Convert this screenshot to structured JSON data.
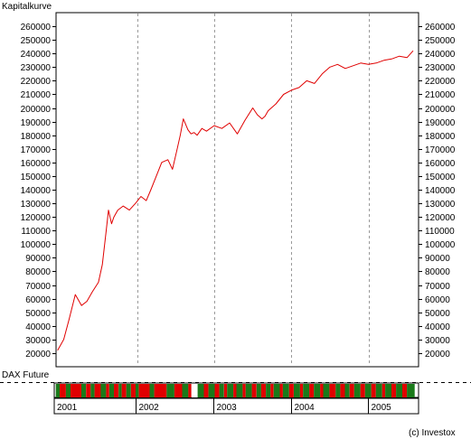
{
  "chart_data": [
    {
      "type": "line",
      "title": "Kapitalkurve",
      "xlabel": "",
      "ylabel": "",
      "x_tick_labels": [
        "2001",
        "2002",
        "2003",
        "2004",
        "2005"
      ],
      "ylim": [
        10000,
        270000
      ],
      "y_ticks": [
        20000,
        30000,
        40000,
        50000,
        60000,
        70000,
        80000,
        90000,
        100000,
        110000,
        120000,
        130000,
        140000,
        150000,
        160000,
        170000,
        180000,
        190000,
        200000,
        210000,
        220000,
        230000,
        240000,
        250000,
        260000
      ],
      "y_axis_both_sides": true,
      "grid": "vertical dashed at year boundaries",
      "series": [
        {
          "color": "#e00000",
          "x": [
            2000.97,
            2001.05,
            2001.12,
            2001.2,
            2001.28,
            2001.35,
            2001.42,
            2001.5,
            2001.55,
            2001.6,
            2001.63,
            2001.67,
            2001.7,
            2001.75,
            2001.82,
            2001.9,
            2001.98,
            2002.05,
            2002.12,
            2002.18,
            2002.25,
            2002.32,
            2002.4,
            2002.46,
            2002.52,
            2002.56,
            2002.6,
            2002.66,
            2002.7,
            2002.74,
            2002.78,
            2002.84,
            2002.9,
            2003.0,
            2003.1,
            2003.2,
            2003.3,
            2003.4,
            2003.5,
            2003.56,
            2003.62,
            2003.66,
            2003.7,
            2003.8,
            2003.9,
            2004.0,
            2004.1,
            2004.2,
            2004.3,
            2004.4,
            2004.5,
            2004.6,
            2004.7,
            2004.8,
            2004.9,
            2005.0,
            2005.1,
            2005.2,
            2005.3,
            2005.4,
            2005.5,
            2005.58
          ],
          "y": [
            22000,
            30000,
            45000,
            63000,
            55000,
            58000,
            65000,
            72000,
            85000,
            110000,
            125000,
            115000,
            120000,
            125000,
            128000,
            125000,
            130000,
            135000,
            132000,
            140000,
            150000,
            160000,
            162000,
            155000,
            170000,
            180000,
            192000,
            184000,
            181000,
            182000,
            180000,
            185000,
            183000,
            187000,
            185000,
            189000,
            181000,
            191000,
            200000,
            195000,
            192000,
            194000,
            198000,
            203000,
            210000,
            213000,
            215000,
            220000,
            218000,
            225000,
            230000,
            232000,
            229000,
            231000,
            233000,
            232000,
            233000,
            235000,
            236000,
            238000,
            237000,
            242000
          ]
        }
      ]
    },
    {
      "type": "heatmap",
      "title": "DAX Future",
      "x_tick_labels": [
        "2001",
        "2002",
        "2003",
        "2004",
        "2005"
      ],
      "colors": {
        "green": "#1a7a1a",
        "red": "#e00000",
        "white": "#ffffff",
        "black": "#000000"
      },
      "blocks": [
        {
          "from": 2000.97,
          "to": 2001.02,
          "state": "green"
        },
        {
          "from": 2001.02,
          "to": 2001.1,
          "state": "red"
        },
        {
          "from": 2001.1,
          "to": 2001.16,
          "state": "green"
        },
        {
          "from": 2001.16,
          "to": 2001.3,
          "state": "red"
        },
        {
          "from": 2001.3,
          "to": 2001.36,
          "state": "green"
        },
        {
          "from": 2001.36,
          "to": 2001.42,
          "state": "red"
        },
        {
          "from": 2001.42,
          "to": 2001.47,
          "state": "green"
        },
        {
          "from": 2001.47,
          "to": 2001.55,
          "state": "red"
        },
        {
          "from": 2001.55,
          "to": 2001.62,
          "state": "green"
        },
        {
          "from": 2001.62,
          "to": 2001.66,
          "state": "red"
        },
        {
          "from": 2001.66,
          "to": 2001.72,
          "state": "green"
        },
        {
          "from": 2001.72,
          "to": 2001.78,
          "state": "red"
        },
        {
          "from": 2001.78,
          "to": 2001.82,
          "state": "green"
        },
        {
          "from": 2001.82,
          "to": 2001.88,
          "state": "red"
        },
        {
          "from": 2001.88,
          "to": 2001.94,
          "state": "green"
        },
        {
          "from": 2001.94,
          "to": 2002.0,
          "state": "red"
        },
        {
          "from": 2002.0,
          "to": 2002.04,
          "state": "green"
        },
        {
          "from": 2002.04,
          "to": 2002.18,
          "state": "red"
        },
        {
          "from": 2002.18,
          "to": 2002.24,
          "state": "green"
        },
        {
          "from": 2002.24,
          "to": 2002.4,
          "state": "red"
        },
        {
          "from": 2002.4,
          "to": 2002.5,
          "state": "green"
        },
        {
          "from": 2002.5,
          "to": 2002.6,
          "state": "red"
        },
        {
          "from": 2002.6,
          "to": 2002.68,
          "state": "green"
        },
        {
          "from": 2002.68,
          "to": 2002.72,
          "state": "red"
        },
        {
          "from": 2002.72,
          "to": 2002.8,
          "state": "white"
        },
        {
          "from": 2002.8,
          "to": 2002.88,
          "state": "green"
        },
        {
          "from": 2002.88,
          "to": 2002.94,
          "state": "red"
        },
        {
          "from": 2002.94,
          "to": 2003.02,
          "state": "green"
        },
        {
          "from": 2003.02,
          "to": 2003.08,
          "state": "red"
        },
        {
          "from": 2003.08,
          "to": 2003.14,
          "state": "green"
        },
        {
          "from": 2003.14,
          "to": 2003.18,
          "state": "red"
        },
        {
          "from": 2003.18,
          "to": 2003.26,
          "state": "green"
        },
        {
          "from": 2003.26,
          "to": 2003.3,
          "state": "red"
        },
        {
          "from": 2003.3,
          "to": 2003.38,
          "state": "green"
        },
        {
          "from": 2003.38,
          "to": 2003.42,
          "state": "red"
        },
        {
          "from": 2003.42,
          "to": 2003.5,
          "state": "green"
        },
        {
          "from": 2003.5,
          "to": 2003.56,
          "state": "red"
        },
        {
          "from": 2003.56,
          "to": 2003.62,
          "state": "green"
        },
        {
          "from": 2003.62,
          "to": 2003.68,
          "state": "red"
        },
        {
          "from": 2003.68,
          "to": 2003.74,
          "state": "green"
        },
        {
          "from": 2003.74,
          "to": 2003.78,
          "state": "red"
        },
        {
          "from": 2003.78,
          "to": 2003.86,
          "state": "green"
        },
        {
          "from": 2003.86,
          "to": 2003.9,
          "state": "red"
        },
        {
          "from": 2003.9,
          "to": 2003.98,
          "state": "green"
        },
        {
          "from": 2003.98,
          "to": 2004.04,
          "state": "red"
        },
        {
          "from": 2004.04,
          "to": 2004.12,
          "state": "green"
        },
        {
          "from": 2004.12,
          "to": 2004.16,
          "state": "red"
        },
        {
          "from": 2004.16,
          "to": 2004.24,
          "state": "green"
        },
        {
          "from": 2004.24,
          "to": 2004.3,
          "state": "red"
        },
        {
          "from": 2004.3,
          "to": 2004.38,
          "state": "green"
        },
        {
          "from": 2004.38,
          "to": 2004.42,
          "state": "red"
        },
        {
          "from": 2004.42,
          "to": 2004.5,
          "state": "green"
        },
        {
          "from": 2004.5,
          "to": 2004.58,
          "state": "red"
        },
        {
          "from": 2004.58,
          "to": 2004.64,
          "state": "green"
        },
        {
          "from": 2004.64,
          "to": 2004.7,
          "state": "red"
        },
        {
          "from": 2004.7,
          "to": 2004.76,
          "state": "green"
        },
        {
          "from": 2004.76,
          "to": 2004.82,
          "state": "red"
        },
        {
          "from": 2004.82,
          "to": 2004.9,
          "state": "green"
        },
        {
          "from": 2004.9,
          "to": 2004.96,
          "state": "red"
        },
        {
          "from": 2004.96,
          "to": 2005.04,
          "state": "green"
        },
        {
          "from": 2005.04,
          "to": 2005.1,
          "state": "red"
        },
        {
          "from": 2005.1,
          "to": 2005.18,
          "state": "green"
        },
        {
          "from": 2005.18,
          "to": 2005.22,
          "state": "red"
        },
        {
          "from": 2005.22,
          "to": 2005.3,
          "state": "green"
        },
        {
          "from": 2005.3,
          "to": 2005.36,
          "state": "red"
        },
        {
          "from": 2005.36,
          "to": 2005.44,
          "state": "green"
        },
        {
          "from": 2005.44,
          "to": 2005.5,
          "state": "red"
        },
        {
          "from": 2005.5,
          "to": 2005.6,
          "state": "green"
        }
      ]
    }
  ],
  "footer": {
    "copyright": "(c) Investox"
  }
}
